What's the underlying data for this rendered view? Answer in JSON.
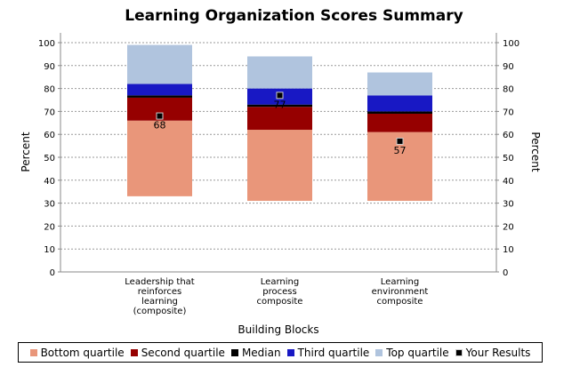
{
  "chart_data": {
    "type": "bar",
    "stacked": true,
    "title": "Learning Organization Scores Summary",
    "xlabel": "Building Blocks",
    "ylabel": "Percent",
    "ylabel_right": "Percent",
    "ylim": [
      0,
      100
    ],
    "yticks": [
      0,
      10,
      20,
      30,
      40,
      50,
      60,
      70,
      80,
      90,
      100
    ],
    "grid": true,
    "legend_position": "bottom",
    "categories": [
      [
        "Leadership that",
        "reinforces",
        "learning",
        "(composite)"
      ],
      [
        "Learning",
        "process",
        "composite"
      ],
      [
        "Learning",
        "environment",
        "composite"
      ]
    ],
    "series": [
      {
        "name": "Bottom quartile",
        "color": "#e9967a",
        "ranges": [
          [
            33,
            66
          ],
          [
            31,
            62
          ],
          [
            31,
            61
          ]
        ]
      },
      {
        "name": "Second quartile",
        "color": "#960000",
        "ranges": [
          [
            66,
            76
          ],
          [
            62,
            72
          ],
          [
            61,
            69
          ]
        ]
      },
      {
        "name": "Median",
        "color": "#000000",
        "ranges": [
          [
            76,
            77
          ],
          [
            72,
            73
          ],
          [
            69,
            70
          ]
        ]
      },
      {
        "name": "Third quartile",
        "color": "#1818c4",
        "ranges": [
          [
            77,
            82
          ],
          [
            73,
            80
          ],
          [
            70,
            77
          ]
        ]
      },
      {
        "name": "Top quartile",
        "color": "#b0c4de",
        "ranges": [
          [
            82,
            99
          ],
          [
            80,
            94
          ],
          [
            77,
            87
          ]
        ]
      }
    ],
    "your_results": {
      "name": "Your Results",
      "color": "#000000",
      "values": [
        68,
        77,
        57
      ],
      "labels": [
        "68",
        "77",
        "57"
      ]
    }
  }
}
